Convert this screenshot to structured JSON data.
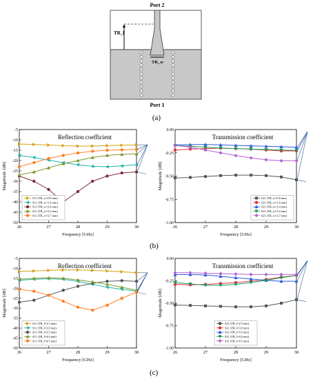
{
  "figure_labels": {
    "a": "(a)",
    "b": "(b)",
    "c": "(c)"
  },
  "diagram": {
    "port2": "Port 2",
    "port1": "Port 1",
    "tr_l": "TR_l",
    "tr_w": "TR_w",
    "colors": {
      "substrate": "#c8c8c8",
      "outline": "#333333",
      "via": "#ffffff"
    }
  },
  "chart_data": [
    {
      "id": "b-left",
      "type": "line",
      "title": "Reflection coefficient",
      "xlabel": "Frequency [GHz]",
      "ylabel": "Magnitude [dB]",
      "xlim": [
        26,
        30
      ],
      "ylim": [
        -50,
        -5
      ],
      "xticks": [
        26,
        27,
        28,
        29,
        30
      ],
      "yticks": [
        -5,
        -10,
        -15,
        -20,
        -25,
        -30,
        -35,
        -40,
        -45,
        -50
      ],
      "x": [
        26,
        26.5,
        27,
        27.5,
        28,
        28.5,
        29,
        29.5,
        30
      ],
      "legend_position": "bottom-left",
      "series": [
        {
          "name": "S11 (TR_w=0.8 mm)",
          "color": "#d4a017",
          "marker": "triangle-right",
          "values": [
            -12.0,
            -12.2,
            -12.5,
            -12.8,
            -13.0,
            -13.0,
            -12.8,
            -12.6,
            -12.4
          ]
        },
        {
          "name": "S11 (TR_w=1.6 mm)",
          "color": "#20b2aa",
          "marker": "triangle-left",
          "values": [
            -17.5,
            -18.5,
            -19.8,
            -21.0,
            -22.0,
            -22.8,
            -23.0,
            -22.6,
            -22.0
          ]
        },
        {
          "name": "S11 (TR_w=2.4 mm)",
          "color": "#7b2d3b",
          "marker": "circle",
          "values": [
            -27.5,
            -30.0,
            -34.0,
            -40.0,
            -35.0,
            -30.0,
            -27.5,
            -26.0,
            -25.5
          ]
        },
        {
          "name": "S11 (TR_w=3.2 mm)",
          "color": "#7b9a2d",
          "marker": "triangle-up",
          "values": [
            -27.0,
            -25.5,
            -23.5,
            -21.5,
            -20.0,
            -18.5,
            -17.5,
            -17.0,
            -16.8
          ]
        },
        {
          "name": "S11 (TR_w=3.7 mm)",
          "color": "#ff7f27",
          "marker": "circle",
          "values": [
            -23.0,
            -21.0,
            -19.0,
            -17.5,
            -16.3,
            -15.5,
            -15.0,
            -14.8,
            -14.6
          ]
        }
      ]
    },
    {
      "id": "b-right",
      "type": "line",
      "title": "Transmission coefficient",
      "xlabel": "Frequency [GHz]",
      "ylabel": "Magnitude [dB]",
      "xlim": [
        26,
        30
      ],
      "ylim": [
        -1.0,
        0.0
      ],
      "xticks": [
        26,
        27,
        28,
        29,
        30
      ],
      "yticks": [
        "0.00",
        "-0.25",
        "-0.50",
        "-0.75",
        "-1.00"
      ],
      "x": [
        26,
        26.5,
        27,
        27.5,
        28,
        28.5,
        29,
        29.5,
        30
      ],
      "legend_position": "bottom-right",
      "series": [
        {
          "name": "S21 (TR_w=0.8 mm)",
          "color": "#555555",
          "marker": "square",
          "values": [
            -0.52,
            -0.515,
            -0.505,
            -0.495,
            -0.49,
            -0.49,
            -0.495,
            -0.51,
            -0.54
          ]
        },
        {
          "name": "S21 (TR_w=1.6 mm)",
          "color": "#e0303a",
          "marker": "circle",
          "values": [
            -0.22,
            -0.21,
            -0.205,
            -0.2,
            -0.205,
            -0.21,
            -0.22,
            -0.23,
            -0.23
          ]
        },
        {
          "name": "S21 (TR_w=2.4 mm)",
          "color": "#2a5adf",
          "marker": "triangle-up",
          "values": [
            -0.165,
            -0.162,
            -0.16,
            -0.165,
            -0.17,
            -0.175,
            -0.18,
            -0.185,
            -0.19
          ]
        },
        {
          "name": "S21 (TR_w=3.2 mm)",
          "color": "#1a9a5a",
          "marker": "triangle-down",
          "values": [
            -0.17,
            -0.18,
            -0.19,
            -0.2,
            -0.205,
            -0.21,
            -0.215,
            -0.22,
            -0.225
          ]
        },
        {
          "name": "S21 (TR_w=3.7 mm)",
          "color": "#b060d0",
          "marker": "diamond",
          "values": [
            -0.17,
            -0.19,
            -0.22,
            -0.25,
            -0.28,
            -0.305,
            -0.325,
            -0.335,
            -0.335
          ]
        }
      ]
    },
    {
      "id": "c-left",
      "type": "line",
      "title": "Reflection coefficient",
      "xlabel": "Frequency [GHz]",
      "ylabel": "Magnitude [dB]",
      "xlim": [
        26,
        30
      ],
      "ylim": [
        -50,
        -5
      ],
      "xticks": [
        26,
        27,
        28,
        29,
        30
      ],
      "yticks": [
        -5,
        -10,
        -15,
        -20,
        -25,
        -30,
        -35,
        -40,
        -45,
        -50
      ],
      "x": [
        26,
        26.5,
        27,
        27.5,
        28,
        28.5,
        29,
        29.5,
        30
      ],
      "legend_position": "bottom-left",
      "series": [
        {
          "name": "S11 (TR_l=2.5 mm)",
          "color": "#d4a017",
          "marker": "triangle-right",
          "values": [
            -11.5,
            -11.3,
            -11.0,
            -10.8,
            -10.8,
            -11.0,
            -11.3,
            -11.7,
            -12.2
          ]
        },
        {
          "name": "S11 (TR_l=3.0 mm)",
          "color": "#20b2aa",
          "marker": "triangle-left",
          "values": [
            -16.0,
            -15.5,
            -15.2,
            -15.5,
            -16.5,
            -18.0,
            -19.5,
            -20.5,
            -21.5
          ]
        },
        {
          "name": "S11 (TR_l=3.5 mm)",
          "color": "#555555",
          "marker": "circle",
          "values": [
            -27.0,
            -26.0,
            -23.5,
            -21.0,
            -19.0,
            -17.5,
            -16.5,
            -16.2,
            -16.5
          ]
        },
        {
          "name": "S11 (TR_l=4.0 mm)",
          "color": "#7b9a2d",
          "marker": "triangle-up",
          "values": [
            -15.5,
            -15.0,
            -14.8,
            -15.0,
            -15.8,
            -16.8,
            -18.0,
            -19.5,
            -21.0
          ]
        },
        {
          "name": "S11 (TR_l=4.5 mm)",
          "color": "#ff7f27",
          "marker": "circle",
          "values": [
            -20.5,
            -21.5,
            -23.5,
            -26.5,
            -29.5,
            -31.0,
            -28.5,
            -25.0,
            -22.0
          ]
        }
      ]
    },
    {
      "id": "c-right",
      "type": "line",
      "title": "Transmission coefficient",
      "xlabel": "Frequency [GHz]",
      "ylabel": "Magnitude [dB]",
      "xlim": [
        26,
        30
      ],
      "ylim": [
        -1.0,
        0.0
      ],
      "xticks": [
        26,
        27,
        28,
        29,
        30
      ],
      "yticks": [
        "0.00",
        "-0.25",
        "-0.50",
        "-0.75",
        "-1.00"
      ],
      "x": [
        26,
        26.5,
        27,
        27.5,
        28,
        28.5,
        29,
        29.5,
        30
      ],
      "legend_position": "bottom-center",
      "series": [
        {
          "name": "S21 (TR_l=2.5 mm)",
          "color": "#555555",
          "marker": "square",
          "values": [
            -0.52,
            -0.525,
            -0.53,
            -0.535,
            -0.54,
            -0.54,
            -0.53,
            -0.5,
            -0.46
          ]
        },
        {
          "name": "S21 (TR_l=3.0 mm)",
          "color": "#e0303a",
          "marker": "circle",
          "values": [
            -0.29,
            -0.295,
            -0.29,
            -0.28,
            -0.27,
            -0.255,
            -0.235,
            -0.21,
            -0.19
          ]
        },
        {
          "name": "S21 (TR_l=3.5 mm)",
          "color": "#2a5adf",
          "marker": "triangle-up",
          "values": [
            -0.18,
            -0.18,
            -0.185,
            -0.2,
            -0.215,
            -0.23,
            -0.245,
            -0.255,
            -0.255
          ]
        },
        {
          "name": "S21 (TR_l=4.0 mm)",
          "color": "#1a9a5a",
          "marker": "triangle-down",
          "values": [
            -0.27,
            -0.285,
            -0.3,
            -0.3,
            -0.29,
            -0.27,
            -0.245,
            -0.215,
            -0.19
          ]
        },
        {
          "name": "S21 (TR_l=4.5 mm)",
          "color": "#b060d0",
          "marker": "diamond",
          "values": [
            -0.16,
            -0.16,
            -0.165,
            -0.17,
            -0.175,
            -0.18,
            -0.18,
            -0.18,
            -0.18
          ]
        }
      ]
    }
  ]
}
